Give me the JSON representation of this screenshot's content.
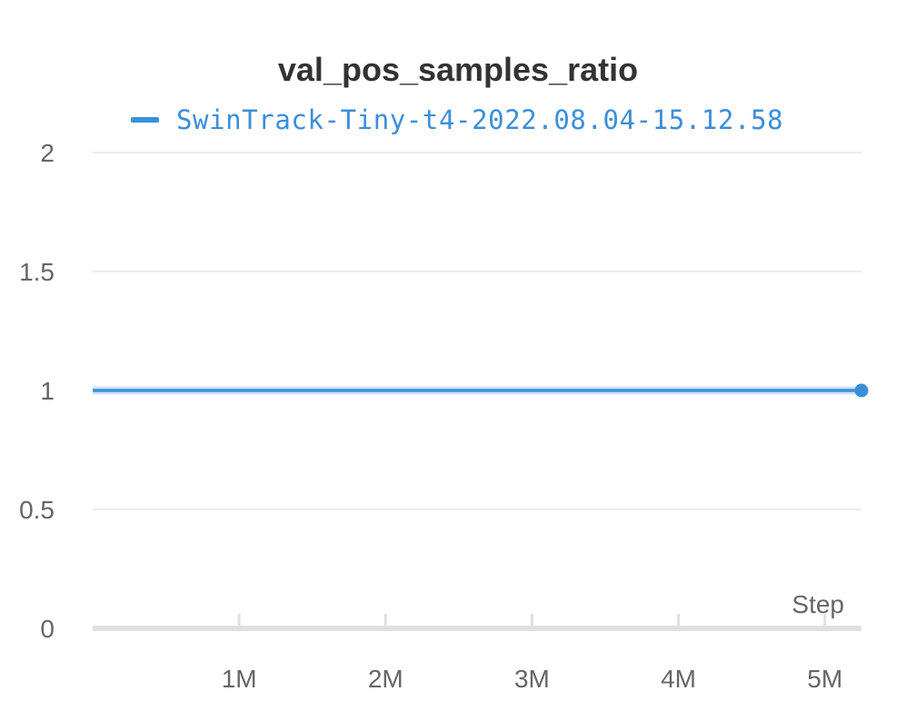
{
  "chart_data": {
    "type": "line",
    "title": "val_pos_samples_ratio",
    "xlabel": "Step",
    "ylabel": "",
    "xlim": [
      0,
      5250000
    ],
    "ylim": [
      0,
      2
    ],
    "x_ticks": [
      {
        "value": 1000000,
        "label": "1M"
      },
      {
        "value": 2000000,
        "label": "2M"
      },
      {
        "value": 3000000,
        "label": "3M"
      },
      {
        "value": 4000000,
        "label": "4M"
      },
      {
        "value": 5000000,
        "label": "5M"
      }
    ],
    "y_ticks": [
      {
        "value": 0,
        "label": "0"
      },
      {
        "value": 0.5,
        "label": "0.5"
      },
      {
        "value": 1,
        "label": "1"
      },
      {
        "value": 1.5,
        "label": "1.5"
      },
      {
        "value": 2,
        "label": "2"
      }
    ],
    "grid": true,
    "legend_position": "top",
    "series": [
      {
        "name": "SwinTrack-Tiny-t4-2022.08.04-15.12.58",
        "color": "#3b8fd9",
        "x": [
          0,
          5250000
        ],
        "y": [
          1,
          1
        ]
      }
    ]
  }
}
